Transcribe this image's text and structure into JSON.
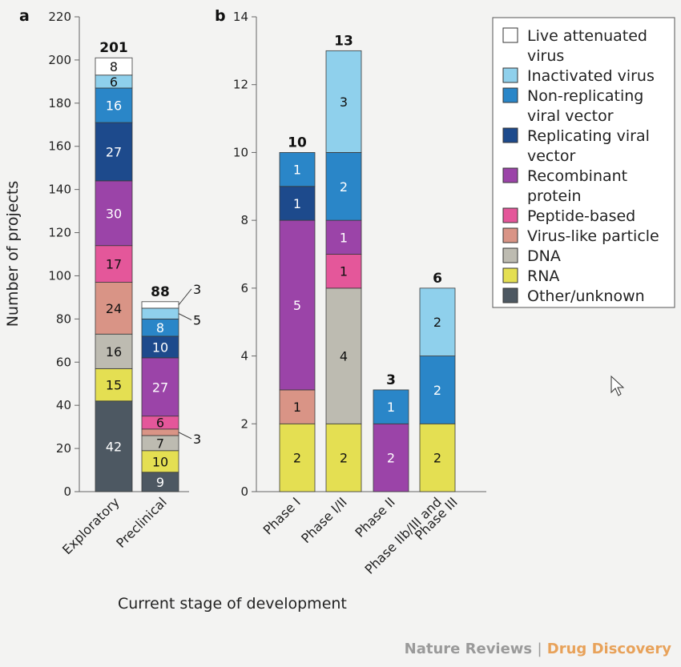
{
  "chart_data": [
    {
      "panel": "a",
      "type": "bar",
      "stacked": true,
      "xlabel": "Current stage of development",
      "ylabel": "Number of projects",
      "ylim": [
        0,
        220
      ],
      "yticks": [
        0,
        20,
        40,
        60,
        80,
        100,
        120,
        140,
        160,
        180,
        200,
        220
      ],
      "categories": [
        "Exploratory",
        "Preclinical"
      ],
      "totals": [
        "201",
        "88"
      ],
      "series": [
        {
          "name": "Other/unknown",
          "values": [
            42,
            9
          ]
        },
        {
          "name": "RNA",
          "values": [
            15,
            10
          ]
        },
        {
          "name": "DNA",
          "values": [
            16,
            7
          ]
        },
        {
          "name": "Virus-like particle",
          "values": [
            24,
            3
          ]
        },
        {
          "name": "Peptide-based",
          "values": [
            17,
            6
          ]
        },
        {
          "name": "Recombinant protein",
          "values": [
            30,
            27
          ]
        },
        {
          "name": "Replicating viral vector",
          "values": [
            27,
            10
          ]
        },
        {
          "name": "Non-replicating viral vector",
          "values": [
            16,
            8
          ]
        },
        {
          "name": "Inactivated virus",
          "values": [
            6,
            5
          ]
        },
        {
          "name": "Live attenuated virus",
          "values": [
            8,
            3
          ]
        }
      ]
    },
    {
      "panel": "b",
      "type": "bar",
      "stacked": true,
      "ylim": [
        0,
        14
      ],
      "yticks": [
        0,
        2,
        4,
        6,
        8,
        10,
        12,
        14
      ],
      "categories": [
        "Phase I",
        "Phase I/II",
        "Phase II",
        "Phase IIb/III and Phase III"
      ],
      "totals": [
        "10",
        "13",
        "3",
        "6"
      ],
      "series": [
        {
          "name": "Other/unknown",
          "values": [
            0,
            0,
            0,
            0
          ]
        },
        {
          "name": "RNA",
          "values": [
            2,
            2,
            0,
            2
          ]
        },
        {
          "name": "DNA",
          "values": [
            0,
            4,
            0,
            0
          ]
        },
        {
          "name": "Virus-like particle",
          "values": [
            1,
            0,
            0,
            0
          ]
        },
        {
          "name": "Peptide-based",
          "values": [
            0,
            1,
            0,
            0
          ]
        },
        {
          "name": "Recombinant protein",
          "values": [
            5,
            1,
            2,
            0
          ]
        },
        {
          "name": "Replicating viral vector",
          "values": [
            1,
            0,
            0,
            0
          ]
        },
        {
          "name": "Non-replicating viral vector",
          "values": [
            1,
            2,
            1,
            2
          ]
        },
        {
          "name": "Inactivated virus",
          "values": [
            0,
            3,
            0,
            2
          ]
        },
        {
          "name": "Live attenuated virus",
          "values": [
            0,
            0,
            0,
            0
          ]
        }
      ]
    }
  ],
  "legend": [
    {
      "label": "Live attenuated virus",
      "color": "#ffffff"
    },
    {
      "label": "Inactivated virus",
      "color": "#8fd0ec"
    },
    {
      "label": "Non-replicating viral vector",
      "color": "#2a86c8"
    },
    {
      "label": "Replicating viral vector",
      "color": "#1d4a8c"
    },
    {
      "label": "Recombinant protein",
      "color": "#9b44a8"
    },
    {
      "label": "Peptide-based",
      "color": "#e4579a"
    },
    {
      "label": "Virus-like particle",
      "color": "#d99486"
    },
    {
      "label": "DNA",
      "color": "#bdbbb1"
    },
    {
      "label": "RNA",
      "color": "#e4df52"
    },
    {
      "label": "Other/unknown",
      "color": "#4d5862"
    }
  ],
  "panel_letters": {
    "a": "a",
    "b": "b"
  },
  "credit": {
    "journal": "Nature Reviews",
    "separator": "|",
    "section": "Drug Discovery"
  }
}
